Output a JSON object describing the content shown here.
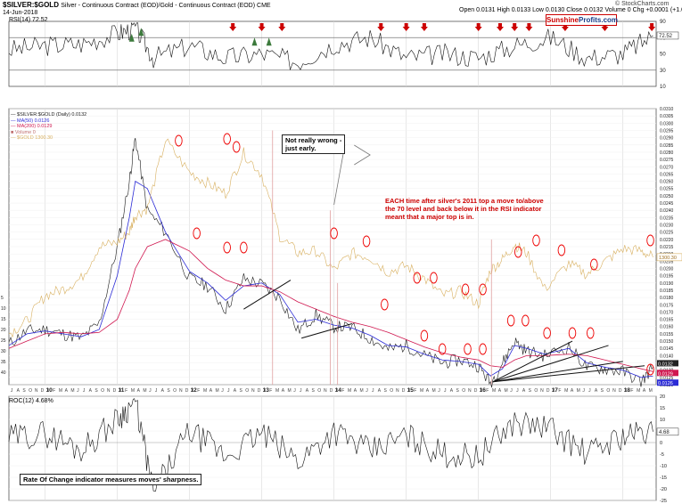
{
  "header": {
    "symbol": "$SILVER:$GOLD",
    "description": "Silver - Continuous Contract (EOD)/Gold - Continuous Contract (EOD) CME",
    "date": "14-Jun-2018",
    "ohlc": "Open 0.0131  High 0.0133  Low 0.0130  Close 0.0132  Volume 0  Chg +0.0001 (+1.05%) ▲",
    "copyright": "© StockCharts.com"
  },
  "brand": {
    "part1": "Sunshine",
    "part2": "Profits.com"
  },
  "rsi_panel": {
    "label": "RSI(14) 72.52",
    "levels": [
      70,
      30
    ],
    "ticks": [
      "90",
      "70",
      "50",
      "30",
      "10"
    ],
    "last": "72.52"
  },
  "main_panel": {
    "legend": [
      "— $SILVER:$GOLD (Daily) 0.0132",
      "— MA(50) 0.0126",
      "— MA(200) 0.0129",
      "■ Volume 0",
      "— $GOLD 1300.30"
    ],
    "right_ticks": [
      "0.0310",
      "0.0305",
      "0.0300",
      "0.0295",
      "0.0290",
      "0.0285",
      "0.0280",
      "0.0275",
      "0.0270",
      "0.0265",
      "0.0260",
      "0.0255",
      "0.0250",
      "0.0245",
      "0.0240",
      "0.0235",
      "0.0230",
      "0.0225",
      "0.0220",
      "0.0215",
      "0.0210",
      "0.0205",
      "0.0200",
      "0.0195",
      "0.0190",
      "0.0185",
      "0.0180",
      "0.0175",
      "0.0170",
      "0.0165",
      "0.0160",
      "0.0155",
      "0.0150",
      "0.0145",
      "0.0140",
      "0.0135",
      "0.0130",
      "0.0125",
      "0.0120"
    ],
    "left_ticks": [
      "40",
      "35",
      "30",
      "25",
      "20",
      "15",
      "10",
      "5"
    ],
    "gold_badge": "1300.30",
    "price_badges": [
      "0.0132",
      "0.0129",
      "0.0126"
    ]
  },
  "x_axis": {
    "years": [
      "10",
      "11",
      "12",
      "13",
      "14",
      "15",
      "16",
      "17",
      "18"
    ],
    "months": "J A S O N D J F M A M J J A S O N D J F M A M J J A S O N D J F M A M J J A S O N D J F M A M J J A S O N D J F M A M J J A S O N D J F M A M J J A S O N D J F M A M J J A S O N D J F M A M J J A S O N D J F M A M J J A S O N D J F M A M J"
  },
  "roc_panel": {
    "label": "ROC(12) 4.68%",
    "ticks": [
      "20",
      "15",
      "10",
      "5",
      "0",
      "-5",
      "-10",
      "-15",
      "-20",
      "-25"
    ],
    "last": "4.68"
  },
  "annotations": {
    "not_wrong": "Not really wrong -\njust early.",
    "each_time": "EACH time after silver's 2011 top a move to/above\nthe 70 level and back below it in the RSI indicator\nmeant that a major top is in.",
    "roc_note": "Rate Of Change indicator measures moves' sharpness."
  },
  "colors": {
    "price": "#1a1a1a",
    "ma50": "#2b2bd6",
    "ma200": "#d01850",
    "gold": "#d8b060",
    "rsi_fill": "#3c7a3c",
    "arrow": "#cc0000",
    "annotation_red": "#cc0000",
    "volume": "#e0a0a0"
  },
  "chart_data": [
    {
      "type": "line",
      "title": "RSI(14) 72.52",
      "x": [
        "2009-07",
        "2010-01",
        "2010-07",
        "2011-01",
        "2011-04",
        "2011-07",
        "2012-01",
        "2012-07",
        "2013-01",
        "2013-07",
        "2014-01",
        "2014-07",
        "2015-01",
        "2015-07",
        "2016-01",
        "2016-07",
        "2017-01",
        "2017-07",
        "2018-01",
        "2018-06"
      ],
      "series": [
        {
          "values": [
            55,
            60,
            62,
            75,
            82,
            45,
            60,
            45,
            50,
            40,
            62,
            70,
            45,
            50,
            45,
            60,
            70,
            45,
            50,
            72.52
          ]
        }
      ],
      "ylim": [
        10,
        90
      ],
      "reference_lines": [
        70,
        30
      ]
    },
    {
      "type": "line",
      "title": "$SILVER:$GOLD (Daily) 0.0132",
      "x": [
        "2009-07",
        "2009-10",
        "2010-01",
        "2010-04",
        "2010-07",
        "2010-10",
        "2011-01",
        "2011-03",
        "2011-04",
        "2011-06",
        "2011-09",
        "2012-01",
        "2012-04",
        "2012-07",
        "2012-10",
        "2013-01",
        "2013-04",
        "2013-07",
        "2013-10",
        "2014-01",
        "2014-04",
        "2014-07",
        "2014-10",
        "2015-01",
        "2015-04",
        "2015-07",
        "2015-10",
        "2016-01",
        "2016-03",
        "2016-05",
        "2016-07",
        "2016-09",
        "2016-12",
        "2017-04",
        "2017-07",
        "2017-10",
        "2018-01",
        "2018-04",
        "2018-06"
      ],
      "series": [
        {
          "name": "$SILVER:$GOLD (Daily) 0.0132",
          "values": [
            0.0148,
            0.0157,
            0.0158,
            0.0155,
            0.0152,
            0.0162,
            0.0215,
            0.026,
            0.029,
            0.024,
            0.0225,
            0.0193,
            0.0188,
            0.0172,
            0.0193,
            0.0189,
            0.018,
            0.0157,
            0.0168,
            0.016,
            0.0159,
            0.0152,
            0.0144,
            0.0147,
            0.014,
            0.0135,
            0.0137,
            0.0133,
            0.0121,
            0.0135,
            0.015,
            0.0143,
            0.014,
            0.0146,
            0.0132,
            0.0131,
            0.0129,
            0.0122,
            0.0132
          ]
        },
        {
          "name": "MA(50) 0.0126",
          "values": [
            0.0147,
            0.0155,
            0.0157,
            0.0155,
            0.0153,
            0.0158,
            0.0195,
            0.0235,
            0.026,
            0.0255,
            0.0225,
            0.0198,
            0.019,
            0.0178,
            0.0188,
            0.019,
            0.0182,
            0.0163,
            0.0165,
            0.0161,
            0.0159,
            0.0154,
            0.0147,
            0.0146,
            0.0141,
            0.0137,
            0.0136,
            0.0134,
            0.0126,
            0.0131,
            0.0147,
            0.0145,
            0.0141,
            0.0145,
            0.0135,
            0.0132,
            0.013,
            0.0125,
            0.0126
          ]
        },
        {
          "name": "MA(200) 0.0129",
          "values": [
            0.0145,
            0.015,
            0.0155,
            0.0156,
            0.0155,
            0.0156,
            0.0165,
            0.0185,
            0.02,
            0.0215,
            0.022,
            0.0212,
            0.02,
            0.0192,
            0.0188,
            0.0188,
            0.0184,
            0.0177,
            0.0172,
            0.0167,
            0.0163,
            0.016,
            0.0156,
            0.0151,
            0.0146,
            0.0142,
            0.0139,
            0.0137,
            0.0133,
            0.0132,
            0.0137,
            0.014,
            0.014,
            0.0141,
            0.014,
            0.0137,
            0.0134,
            0.0131,
            0.0129
          ]
        },
        {
          "name": "$GOLD 1300.30",
          "values": [
            940,
            1000,
            1120,
            1150,
            1200,
            1350,
            1370,
            1420,
            1500,
            1530,
            1850,
            1700,
            1650,
            1600,
            1790,
            1690,
            1400,
            1320,
            1330,
            1240,
            1320,
            1300,
            1230,
            1260,
            1200,
            1120,
            1140,
            1080,
            1240,
            1290,
            1360,
            1320,
            1150,
            1270,
            1220,
            1280,
            1340,
            1330,
            1300.3
          ]
        }
      ],
      "ylim": [
        0.012,
        0.031
      ]
    },
    {
      "type": "line",
      "title": "ROC(12) 4.68%",
      "x": [
        "2009-07",
        "2010-01",
        "2010-07",
        "2011-01",
        "2011-04",
        "2011-07",
        "2012-01",
        "2012-07",
        "2013-01",
        "2013-07",
        "2014-01",
        "2014-07",
        "2015-01",
        "2015-07",
        "2016-01",
        "2016-07",
        "2017-01",
        "2017-07",
        "2018-01",
        "2018-06"
      ],
      "series": [
        {
          "values": [
            2,
            4,
            -3,
            10,
            18,
            -22,
            5,
            -6,
            4,
            -8,
            5,
            -4,
            3,
            -5,
            -6,
            9,
            6,
            -5,
            3,
            4.68
          ]
        }
      ],
      "ylim": [
        -25,
        20
      ]
    }
  ]
}
